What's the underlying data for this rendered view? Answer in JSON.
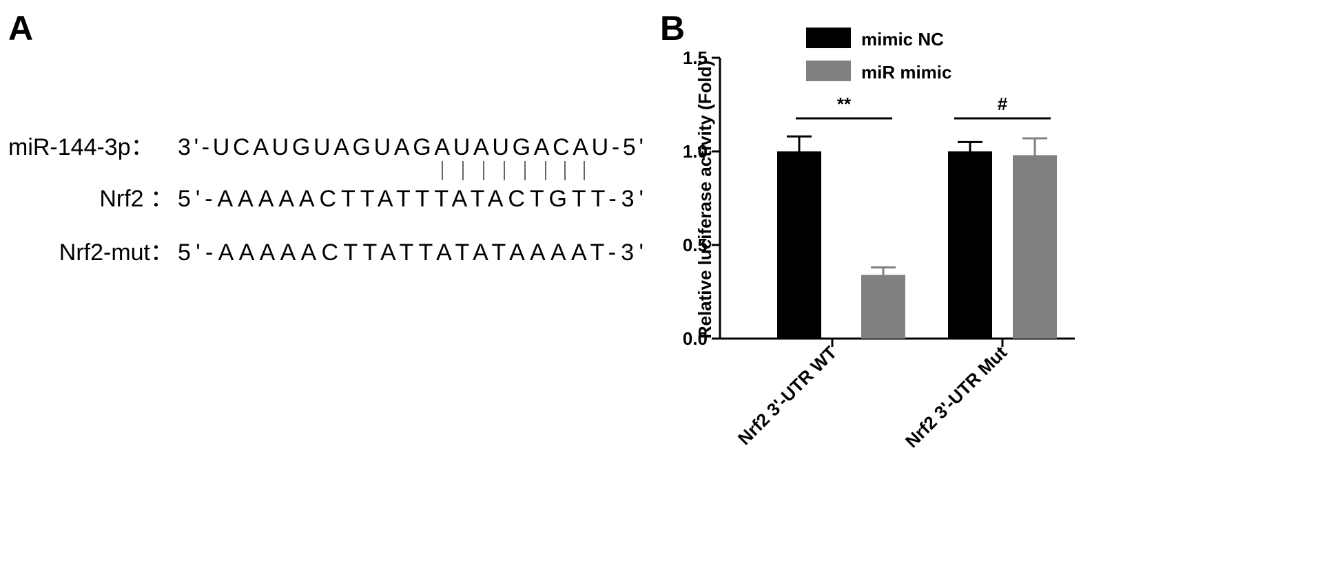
{
  "panel_a": {
    "label": "A",
    "rows": [
      {
        "name": "miR-144-3p：",
        "sequence": "3'-UCAUGUAGUAGAUAUGACAU-5'"
      },
      {
        "name": "Nrf2 ：",
        "sequence": "5'-AAAAACTTATTTATACTGTT-3'"
      },
      {
        "name": "Nrf2-mut：",
        "sequence": "5'-AAAAACTTATTATATAAAAT-3'"
      }
    ]
  },
  "chart_data": {
    "type": "bar",
    "panel_label": "B",
    "ylabel": "Relative luciferase activity (Fold)",
    "categories": [
      "Nrf2 3'-UTR WT",
      "Nrf2 3'-UTR Mut"
    ],
    "series": [
      {
        "name": "mimic NC",
        "color": "#000000",
        "values": [
          1.0,
          1.0
        ],
        "errors": [
          0.08,
          0.05
        ]
      },
      {
        "name": "miR mimic",
        "color": "#808080",
        "values": [
          0.34,
          0.98
        ],
        "errors": [
          0.04,
          0.09
        ]
      }
    ],
    "ylim": [
      0,
      1.5
    ],
    "yticks": [
      {
        "value": 0,
        "label": "0.0"
      },
      {
        "value": 0.5,
        "label": "0.5"
      },
      {
        "value": 1,
        "label": "1.0"
      },
      {
        "value": 1.5,
        "label": "1.5"
      }
    ],
    "annotations": [
      "**",
      "#"
    ],
    "legend": "top"
  }
}
